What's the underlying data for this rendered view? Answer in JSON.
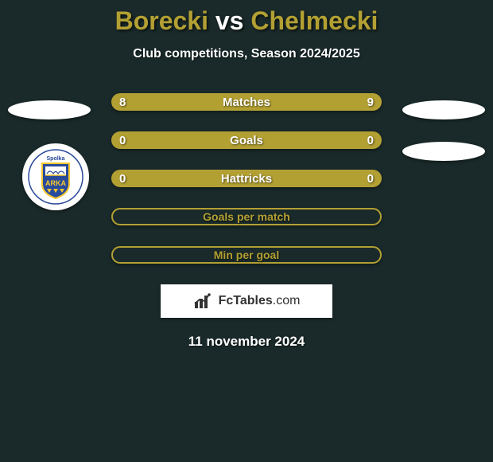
{
  "title": {
    "left": "Borecki",
    "vs": "vs",
    "right": "Chelmecki"
  },
  "subtitle": "Club competitions, Season 2024/2025",
  "colors": {
    "accent": "#b3a033",
    "accent_border": "#b3a033",
    "title_color": "#b3a033",
    "background": "#1a2a2a",
    "white": "#ffffff"
  },
  "rows": [
    {
      "type": "filled",
      "left": "8",
      "label": "Matches",
      "right": "9"
    },
    {
      "type": "filled",
      "left": "0",
      "label": "Goals",
      "right": "0"
    },
    {
      "type": "filled",
      "left": "0",
      "label": "Hattricks",
      "right": "0"
    },
    {
      "type": "hollow",
      "left": "",
      "label": "Goals per match",
      "right": ""
    },
    {
      "type": "hollow",
      "left": "",
      "label": "Min per goal",
      "right": ""
    }
  ],
  "brand": {
    "part1": "FcTables",
    "part2": ".com"
  },
  "date": "11 november 2024",
  "club_badge": {
    "outer_text": "Spolka",
    "name": "ARKA",
    "shield_bg": "#2a4a9a",
    "shield_border": "#f5c830"
  }
}
